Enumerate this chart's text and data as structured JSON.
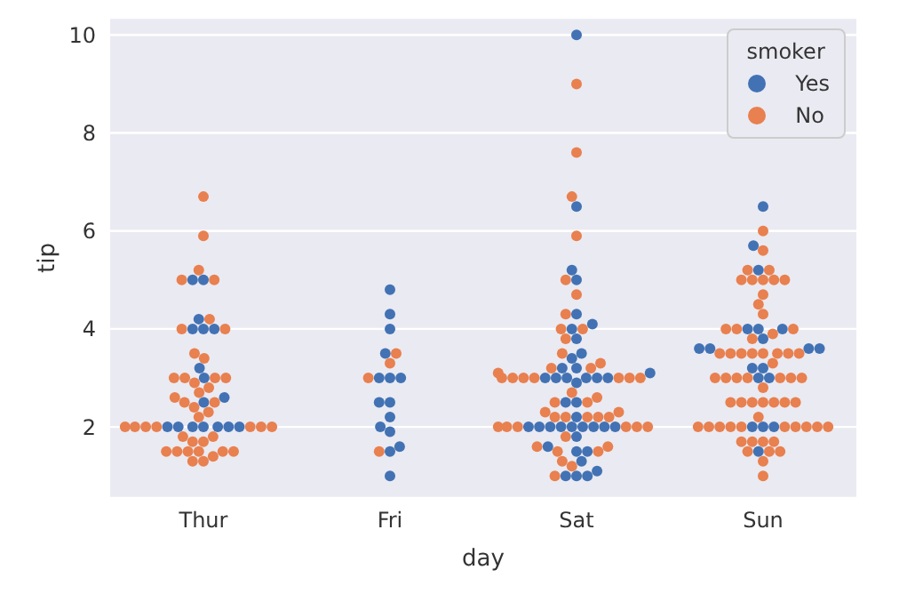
{
  "chart_data": {
    "type": "scatter",
    "xlabel": "day",
    "ylabel": "tip",
    "legend_title": "smoker",
    "categories": [
      "Thur",
      "Fri",
      "Sat",
      "Sun"
    ],
    "ylim": [
      0.55,
      10.35
    ],
    "yticks": [
      2,
      4,
      6,
      8,
      10
    ],
    "grid": "y",
    "legend": "top right",
    "marker": "circle",
    "series": [
      {
        "name": "Yes",
        "color": "#4272b4",
        "x": [
          "Thur",
          "Thur",
          "Thur",
          "Thur",
          "Thur",
          "Thur",
          "Thur",
          "Thur",
          "Thur",
          "Thur",
          "Thur",
          "Thur",
          "Thur",
          "Thur",
          "Thur",
          "Thur",
          "Thur",
          "Fri",
          "Fri",
          "Fri",
          "Fri",
          "Fri",
          "Fri",
          "Fri",
          "Fri",
          "Fri",
          "Fri",
          "Fri",
          "Fri",
          "Fri",
          "Fri",
          "Fri",
          "Sat",
          "Sat",
          "Sat",
          "Sat",
          "Sat",
          "Sat",
          "Sat",
          "Sat",
          "Sat",
          "Sat",
          "Sat",
          "Sat",
          "Sat",
          "Sat",
          "Sat",
          "Sat",
          "Sat",
          "Sat",
          "Sat",
          "Sat",
          "Sat",
          "Sat",
          "Sat",
          "Sat",
          "Sat",
          "Sat",
          "Sat",
          "Sat",
          "Sat",
          "Sat",
          "Sat",
          "Sat",
          "Sat",
          "Sat",
          "Sat",
          "Sat",
          "Sat",
          "Sat",
          "Sat",
          "Sat",
          "Sat",
          "Sun",
          "Sun",
          "Sun",
          "Sun",
          "Sun",
          "Sun",
          "Sun",
          "Sun",
          "Sun",
          "Sun",
          "Sun",
          "Sun",
          "Sun",
          "Sun",
          "Sun",
          "Sun",
          "Sun",
          "Sun",
          "Sun"
        ],
        "values": [
          5.0,
          5.0,
          4.2,
          4.0,
          4.0,
          4.0,
          3.2,
          3.0,
          2.6,
          2.5,
          2.0,
          2.0,
          2.0,
          2.0,
          2.0,
          2.0,
          2.0,
          4.8,
          4.3,
          4.0,
          3.5,
          3.0,
          3.0,
          3.0,
          2.5,
          2.5,
          2.2,
          2.0,
          1.9,
          1.5,
          1.6,
          1.0,
          10.0,
          6.5,
          5.2,
          5.0,
          4.3,
          4.1,
          4.0,
          3.8,
          3.5,
          3.4,
          3.2,
          3.2,
          3.1,
          3.0,
          3.0,
          3.0,
          3.0,
          3.0,
          3.0,
          2.9,
          2.5,
          2.5,
          2.2,
          2.0,
          2.0,
          2.0,
          2.0,
          2.0,
          2.0,
          2.0,
          2.0,
          2.0,
          1.8,
          1.6,
          1.5,
          1.5,
          1.3,
          1.1,
          1.0,
          1.0,
          1.0,
          6.5,
          5.7,
          5.2,
          4.0,
          4.0,
          4.0,
          3.8,
          3.6,
          3.6,
          3.6,
          3.6,
          3.2,
          3.2,
          3.0,
          3.0,
          2.0,
          2.0,
          2.0,
          1.5
        ]
      },
      {
        "name": "No",
        "color": "#e8804f",
        "x": [
          "Thur",
          "Thur",
          "Thur",
          "Thur",
          "Thur",
          "Thur",
          "Thur",
          "Thur",
          "Thur",
          "Thur",
          "Thur",
          "Thur",
          "Thur",
          "Thur",
          "Thur",
          "Thur",
          "Thur",
          "Thur",
          "Thur",
          "Thur",
          "Thur",
          "Thur",
          "Thur",
          "Thur",
          "Thur",
          "Thur",
          "Thur",
          "Thur",
          "Thur",
          "Thur",
          "Thur",
          "Thur",
          "Thur",
          "Thur",
          "Thur",
          "Thur",
          "Thur",
          "Thur",
          "Thur",
          "Thur",
          "Thur",
          "Thur",
          "Thur",
          "Fri",
          "Fri",
          "Fri",
          "Fri",
          "Sat",
          "Sat",
          "Sat",
          "Sat",
          "Sat",
          "Sat",
          "Sat",
          "Sat",
          "Sat",
          "Sat",
          "Sat",
          "Sat",
          "Sat",
          "Sat",
          "Sat",
          "Sat",
          "Sat",
          "Sat",
          "Sat",
          "Sat",
          "Sat",
          "Sat",
          "Sat",
          "Sat",
          "Sat",
          "Sat",
          "Sat",
          "Sat",
          "Sat",
          "Sat",
          "Sat",
          "Sat",
          "Sat",
          "Sat",
          "Sat",
          "Sat",
          "Sat",
          "Sat",
          "Sat",
          "Sat",
          "Sat",
          "Sat",
          "Sat",
          "Sat",
          "Sat",
          "Sat",
          "Sat",
          "Sun",
          "Sun",
          "Sun",
          "Sun",
          "Sun",
          "Sun",
          "Sun",
          "Sun",
          "Sun",
          "Sun",
          "Sun",
          "Sun",
          "Sun",
          "Sun",
          "Sun",
          "Sun",
          "Sun",
          "Sun",
          "Sun",
          "Sun",
          "Sun",
          "Sun",
          "Sun",
          "Sun",
          "Sun",
          "Sun",
          "Sun",
          "Sun",
          "Sun",
          "Sun",
          "Sun",
          "Sun",
          "Sun",
          "Sun",
          "Sun",
          "Sun",
          "Sun",
          "Sun",
          "Sun",
          "Sun",
          "Sun",
          "Sun",
          "Sun",
          "Sun",
          "Sun",
          "Sun",
          "Sun",
          "Sun",
          "Sun",
          "Sun",
          "Sun",
          "Sun",
          "Sun",
          "Sun",
          "Sun",
          "Sun",
          "Sun",
          "Sun",
          "Sun",
          "Sun",
          "Sun"
        ],
        "values": [
          6.7,
          5.9,
          5.2,
          5.0,
          5.0,
          4.2,
          4.0,
          4.0,
          3.5,
          3.4,
          3.0,
          3.0,
          3.0,
          3.0,
          2.9,
          2.8,
          2.7,
          2.6,
          2.5,
          2.5,
          2.4,
          2.3,
          2.2,
          2.0,
          2.0,
          2.0,
          2.0,
          2.0,
          2.0,
          2.0,
          1.8,
          1.8,
          1.7,
          1.7,
          1.5,
          1.5,
          1.5,
          1.5,
          1.5,
          1.5,
          1.4,
          1.3,
          1.3,
          3.5,
          3.3,
          3.0,
          1.5,
          9.0,
          7.6,
          6.7,
          5.9,
          5.0,
          4.7,
          4.3,
          4.0,
          4.0,
          3.8,
          3.5,
          3.3,
          3.2,
          3.2,
          3.1,
          3.0,
          3.0,
          3.0,
          3.0,
          3.0,
          3.0,
          3.0,
          2.7,
          2.6,
          2.5,
          2.5,
          2.3,
          2.3,
          2.2,
          2.2,
          2.2,
          2.2,
          2.2,
          2.0,
          2.0,
          2.0,
          2.0,
          2.0,
          2.0,
          1.8,
          1.6,
          1.6,
          1.5,
          1.5,
          1.3,
          1.2,
          1.0,
          6.0,
          5.6,
          5.2,
          5.2,
          5.0,
          5.0,
          5.0,
          5.0,
          5.0,
          4.7,
          4.5,
          4.3,
          4.0,
          4.0,
          4.0,
          3.9,
          3.8,
          3.5,
          3.5,
          3.5,
          3.5,
          3.5,
          3.5,
          3.5,
          3.5,
          3.3,
          3.0,
          3.0,
          3.0,
          3.0,
          3.0,
          3.0,
          3.0,
          2.8,
          2.5,
          2.5,
          2.5,
          2.5,
          2.5,
          2.5,
          2.5,
          2.2,
          2.0,
          2.0,
          2.0,
          2.0,
          2.0,
          2.0,
          2.0,
          2.0,
          2.0,
          2.0,
          1.7,
          1.7,
          1.7,
          1.7,
          1.5,
          1.5,
          1.5,
          1.3,
          1.0
        ]
      }
    ]
  }
}
